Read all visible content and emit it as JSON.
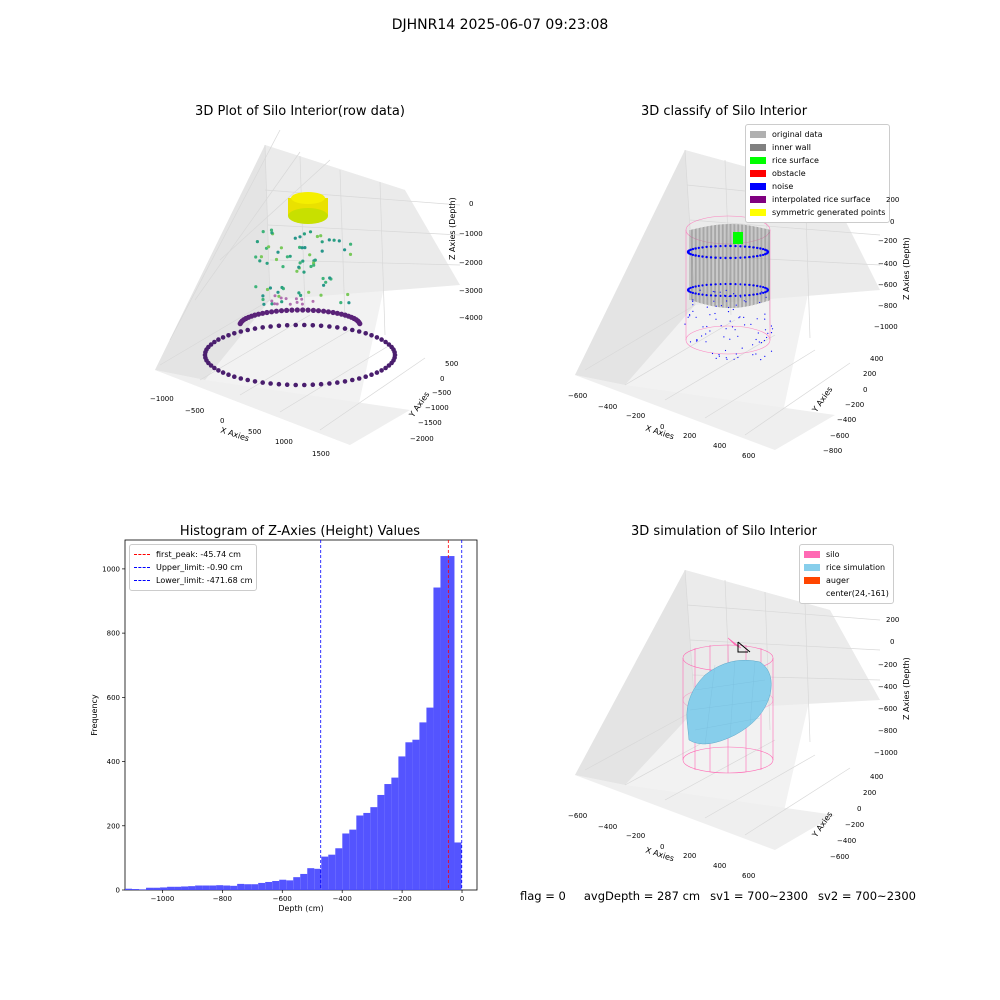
{
  "suptitle": "DJHNR14 2025-06-07 09:23:08",
  "panels": {
    "raw": {
      "title": "3D Plot of Silo Interior(row data)",
      "xlabel": "X Axies",
      "ylabel": "Y Axies",
      "zlabel": "Z Axies (Depth)",
      "xticks": [
        "−1000",
        "−500",
        "0",
        "500",
        "1000",
        "1500"
      ],
      "yticks": [
        "500",
        "0",
        "−500",
        "−1000",
        "−1500",
        "−2000"
      ],
      "zticks": [
        "0",
        "−1000",
        "−2000",
        "−3000",
        "−4000"
      ]
    },
    "classify": {
      "title": "3D classify of Silo Interior",
      "xlabel": "X Axies",
      "ylabel": "Y Axies",
      "zlabel": "Z Axies (Depth)",
      "xticks": [
        "−600",
        "−400",
        "−200",
        "0",
        "200",
        "400",
        "600"
      ],
      "yticks": [
        "400",
        "200",
        "0",
        "−200",
        "−400",
        "−600",
        "−800"
      ],
      "zticks": [
        "200",
        "0",
        "−200",
        "−400",
        "−600",
        "−800",
        "−1000"
      ],
      "legend": [
        {
          "label": "original data",
          "color": "#b0b0b0"
        },
        {
          "label": "inner wall",
          "color": "#808080"
        },
        {
          "label": "rice surface",
          "color": "#00ff00"
        },
        {
          "label": "obstacle",
          "color": "#ff0000"
        },
        {
          "label": "noise",
          "color": "#0000ff"
        },
        {
          "label": "interpolated rice surface",
          "color": "#800080"
        },
        {
          "label": "symmetric generated points",
          "color": "#ffff00"
        }
      ]
    },
    "simulation": {
      "title": "3D simulation of Silo Interior",
      "xlabel": "X Axies",
      "ylabel": "Y Axies",
      "zlabel": "Z Axies (Depth)",
      "xticks": [
        "−600",
        "−400",
        "−200",
        "0",
        "200",
        "400",
        "600"
      ],
      "yticks": [
        "400",
        "200",
        "0",
        "−200",
        "−400",
        "−600"
      ],
      "zticks": [
        "200",
        "0",
        "−200",
        "−400",
        "−600",
        "−800",
        "−1000"
      ],
      "legend": [
        {
          "label": "silo",
          "color": "#ff69b4"
        },
        {
          "label": "rice simulation",
          "color": "#87ceeb"
        },
        {
          "label": "auger",
          "color": "#ff4500"
        },
        {
          "label": "center(24,-161)",
          "color": ""
        }
      ]
    }
  },
  "chart_data": {
    "type": "bar",
    "title": "Histogram of Z-Axies (Height) Values",
    "xlabel": "Depth (cm)",
    "ylabel": "Frequency",
    "xlim": [
      -1125,
      50
    ],
    "ylim": [
      0,
      1090
    ],
    "bar_color": "#4b4bff",
    "bin_width": 23.4,
    "bins_start": [
      -1125.0,
      -1101.6,
      -1078.2,
      -1054.8,
      -1031.4,
      -1008.0,
      -984.6,
      -961.2,
      -937.8,
      -914.4,
      -891.0,
      -867.6,
      -844.2,
      -820.8,
      -797.4,
      -774.0,
      -750.6,
      -727.2,
      -703.8,
      -680.4,
      -657.0,
      -633.6,
      -610.2,
      -586.8,
      -563.4,
      -540.0,
      -516.6,
      -493.2,
      -469.8,
      -446.4,
      -423.0,
      -399.6,
      -376.2,
      -352.8,
      -329.4,
      -306.0,
      -282.6,
      -259.2,
      -235.8,
      -212.4,
      -189.0,
      -165.6,
      -142.2,
      -118.8,
      -95.4,
      -72.0,
      -48.6,
      -25.2,
      -1.8
    ],
    "values": [
      4,
      3,
      2,
      7,
      7,
      8,
      10,
      10,
      11,
      12,
      14,
      14,
      14,
      15,
      14,
      13,
      19,
      18,
      18,
      22,
      25,
      28,
      32,
      30,
      40,
      50,
      68,
      66,
      104,
      110,
      130,
      176,
      188,
      232,
      240,
      258,
      296,
      330,
      350,
      416,
      460,
      468,
      522,
      568,
      942,
      1040,
      1040,
      148,
      0
    ],
    "xticks": [
      -1000,
      -800,
      -600,
      -400,
      -200,
      0
    ],
    "yticks": [
      0,
      200,
      400,
      600,
      800,
      1000
    ],
    "lines": [
      {
        "label": "first_peak: -45.74 cm",
        "x": -45.74,
        "color": "#ff0000"
      },
      {
        "label": "Upper_limit: -0.90 cm",
        "x": -0.9,
        "color": "#0000ff"
      },
      {
        "label": "Lower_limit: -471.68 cm",
        "x": -471.68,
        "color": "#0000ff"
      }
    ],
    "legend": "top-left"
  },
  "footer": {
    "flag": "flag = 0",
    "avg": "avgDepth = 287 cm",
    "sv1": "sv1 = 700~2300",
    "sv2": "sv2 = 700~2300"
  }
}
